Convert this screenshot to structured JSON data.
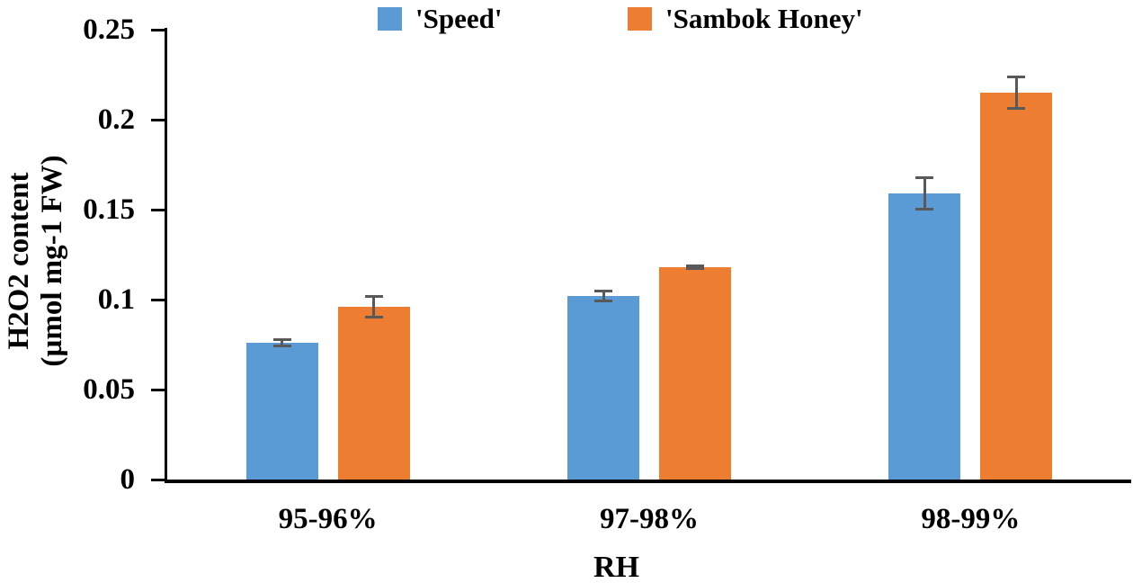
{
  "chart_data": {
    "type": "bar",
    "title": "",
    "categories": [
      "95-96%",
      "97-98%",
      "98-99%"
    ],
    "series": [
      {
        "name": "'Speed'",
        "color": "#5B9BD5",
        "values": [
          0.076,
          0.102,
          0.159
        ],
        "errors": [
          0.002,
          0.003,
          0.009
        ]
      },
      {
        "name": "'Sambok Honey'",
        "color": "#ED7D31",
        "values": [
          0.096,
          0.118,
          0.215
        ],
        "errors": [
          0.006,
          0.001,
          0.009
        ]
      }
    ],
    "xlabel": "RH",
    "ylabel_line1": "H2O2 content",
    "ylabel_line2": "(µmol mg-1 FW)",
    "ylim": [
      0,
      0.25
    ],
    "yticks": [
      0,
      0.05,
      0.1,
      0.15,
      0.2,
      0.25
    ],
    "ytick_labels": [
      "0",
      "0.05",
      "0.1",
      "0.15",
      "0.2",
      "0.25"
    ],
    "grid": false,
    "legend_position": "top",
    "error_bar_color": "#595959",
    "axis_color": "#000000"
  }
}
